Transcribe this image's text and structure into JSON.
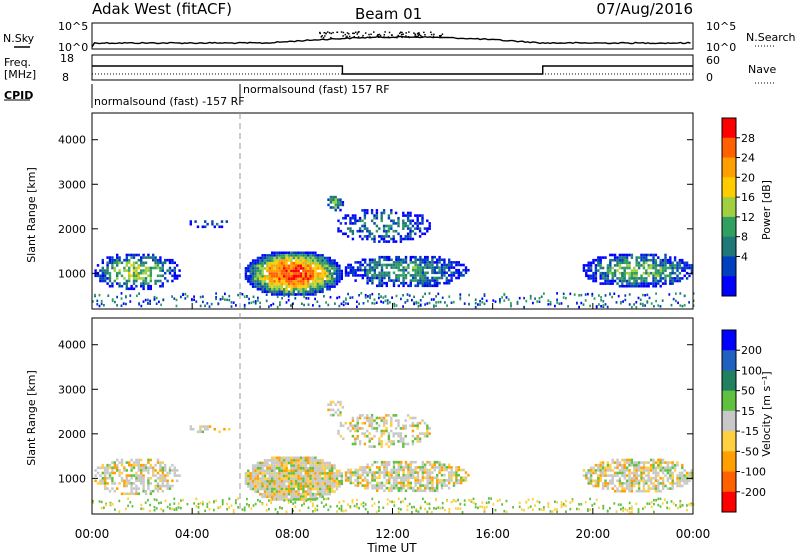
{
  "header": {
    "station": "Adak West (fitACF)",
    "beam": "Beam 01",
    "date": "07/Aug/2016"
  },
  "labels": {
    "nsky": "N.Sky",
    "nsearch": "N.Search",
    "freq": "Freq.",
    "mhz": "[MHz]",
    "nave": "Nave",
    "cpid": "CPID",
    "cpid_left": "normalsound (fast) -157 RF",
    "cpid_right": "normalsound (fast) 157 RF",
    "nsky_tick_top": "10^5",
    "nsky_tick_bottom": "10^0",
    "nsearch_tick_top": "10^5",
    "nsearch_tick_bottom": "10^0",
    "freq_tick_top": "18",
    "freq_tick_bottom": "8",
    "nave_tick_top": "60",
    "nave_tick_bottom": "0"
  },
  "chart_data": [
    {
      "type": "heatmap",
      "name": "Power",
      "ylabel": "Slant Range [km]",
      "xlabel": "Time UT",
      "ylim": [
        200,
        4600
      ],
      "y_ticks": [
        1000,
        2000,
        3000,
        4000
      ],
      "x_ticks": [
        "00:00",
        "04:00",
        "08:00",
        "12:00",
        "16:00",
        "20:00",
        "00:00"
      ],
      "colorbar_label": "Power [dB]",
      "colorbar_ticks": [
        "28",
        "24",
        "20",
        "16",
        "12",
        "8",
        "4"
      ],
      "colorbar_colors": [
        "#ff0000",
        "#ff6000",
        "#ffa000",
        "#ffcc00",
        "#a0d040",
        "#30a060",
        "#207878",
        "#0040c0",
        "#0000ff"
      ]
    },
    {
      "type": "heatmap",
      "name": "Velocity",
      "ylabel": "Slant Range [km]",
      "xlabel": "Time UT",
      "ylim": [
        200,
        4600
      ],
      "y_ticks": [
        1000,
        2000,
        3000,
        4000
      ],
      "x_ticks": [
        "00:00",
        "04:00",
        "08:00",
        "12:00",
        "16:00",
        "20:00",
        "00:00"
      ],
      "colorbar_label": "Velocity [m s⁻¹]",
      "colorbar_ticks": [
        "200",
        "100",
        "50",
        "15",
        "-15",
        "-50",
        "-100",
        "-200"
      ],
      "colorbar_colors": [
        "#0000ff",
        "#2060c0",
        "#208060",
        "#60c040",
        "#c8c8c8",
        "#ffd040",
        "#ffa000",
        "#ff6000",
        "#ff0000"
      ]
    }
  ],
  "time_axis_label": "Time UT"
}
